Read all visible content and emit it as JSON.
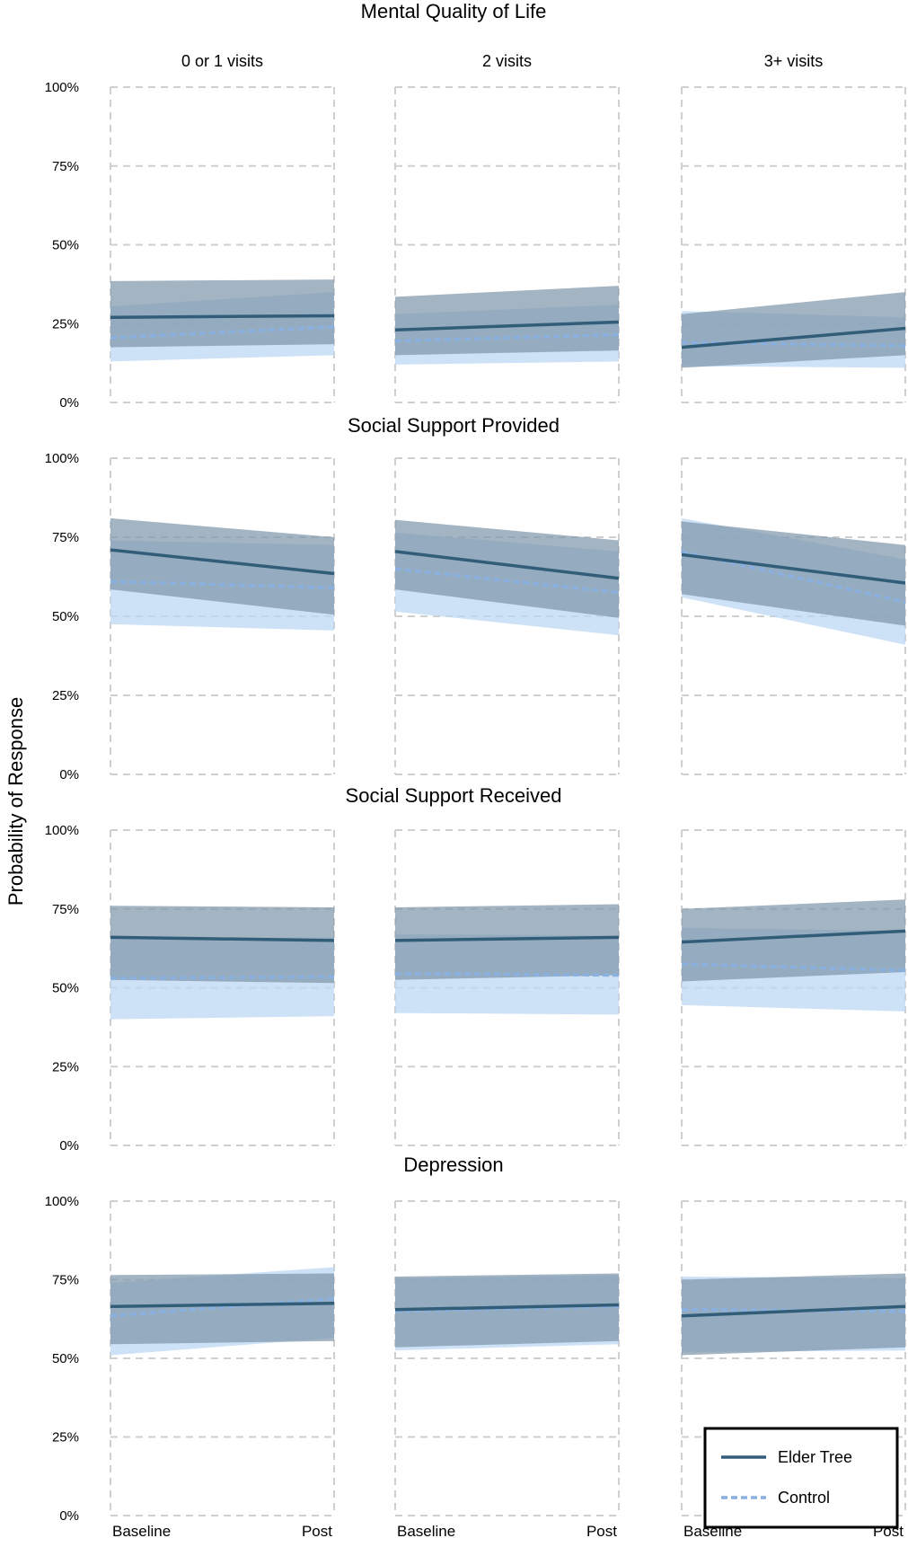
{
  "chart_data": {
    "type": "line",
    "ylabel": "Probability of Response",
    "yticks": [
      "0%",
      "25%",
      "50%",
      "75%",
      "100%"
    ],
    "ylim": [
      0,
      100
    ],
    "columns": [
      "0 or 1 visits",
      "2 visits",
      "3+ visits"
    ],
    "x": [
      "Baseline",
      "Post"
    ],
    "grid": true,
    "legend": {
      "position": "bottom-right",
      "items": [
        {
          "name": "Elder Tree",
          "style": "solid"
        },
        {
          "name": "Control",
          "style": "dashed"
        }
      ]
    },
    "colors": {
      "elder_line": "#325d78",
      "elder_band": "#7f97ab",
      "control_line": "#8ab0e0",
      "control_band": "#bcd7f4",
      "grid": "#cfcfcf"
    },
    "rows": [
      {
        "title": "Mental Quality of Life",
        "panels": [
          {
            "elder": {
              "values": [
                27,
                27.5
              ],
              "lower": [
                17.5,
                18.5
              ],
              "upper": [
                38.5,
                39
              ]
            },
            "control": {
              "values": [
                20.5,
                24
              ],
              "lower": [
                13,
                15
              ],
              "upper": [
                30.5,
                35
              ]
            }
          },
          {
            "elder": {
              "values": [
                23,
                25.5
              ],
              "lower": [
                15,
                16.5
              ],
              "upper": [
                33.5,
                37
              ]
            },
            "control": {
              "values": [
                19.5,
                21.5
              ],
              "lower": [
                12,
                13
              ],
              "upper": [
                28,
                31
              ]
            }
          },
          {
            "elder": {
              "values": [
                17.5,
                23.5
              ],
              "lower": [
                11,
                15
              ],
              "upper": [
                28,
                35
              ]
            },
            "control": {
              "values": [
                19,
                18
              ],
              "lower": [
                11.5,
                11
              ],
              "upper": [
                29,
                27
              ]
            }
          }
        ]
      },
      {
        "title": "Social Support Provided",
        "panels": [
          {
            "elder": {
              "values": [
                71,
                63.5
              ],
              "lower": [
                58.5,
                50.5
              ],
              "upper": [
                81,
                75
              ]
            },
            "control": {
              "values": [
                61,
                59
              ],
              "lower": [
                47.5,
                45.5
              ],
              "upper": [
                74,
                72.5
              ]
            }
          },
          {
            "elder": {
              "values": [
                70.5,
                62
              ],
              "lower": [
                58.5,
                49.5
              ],
              "upper": [
                80.5,
                74
              ]
            },
            "control": {
              "values": [
                65,
                57.5
              ],
              "lower": [
                51.5,
                44
              ],
              "upper": [
                76.5,
                70.5
              ]
            }
          },
          {
            "elder": {
              "values": [
                69.5,
                60.5
              ],
              "lower": [
                57,
                47
              ],
              "upper": [
                80,
                72.5
              ]
            },
            "control": {
              "values": [
                70.5,
                54.5
              ],
              "lower": [
                56,
                41
              ],
              "upper": [
                81,
                68
              ]
            }
          }
        ]
      },
      {
        "title": "Social Support Received",
        "panels": [
          {
            "elder": {
              "values": [
                66,
                65
              ],
              "lower": [
                52.5,
                51.5
              ],
              "upper": [
                76,
                75.5
              ]
            },
            "control": {
              "values": [
                53,
                53.5
              ],
              "lower": [
                40,
                41
              ],
              "upper": [
                65.5,
                66
              ]
            }
          },
          {
            "elder": {
              "values": [
                65,
                66
              ],
              "lower": [
                52.5,
                54
              ],
              "upper": [
                75.5,
                76.5
              ]
            },
            "control": {
              "values": [
                54.5,
                54
              ],
              "lower": [
                42,
                41.5
              ],
              "upper": [
                67,
                66.5
              ]
            }
          },
          {
            "elder": {
              "values": [
                64.5,
                68
              ],
              "lower": [
                52,
                55
              ],
              "upper": [
                75,
                78
              ]
            },
            "control": {
              "values": [
                57.5,
                55.5
              ],
              "lower": [
                44.5,
                42.5
              ],
              "upper": [
                69,
                68
              ]
            }
          }
        ]
      },
      {
        "title": "Depression",
        "panels": [
          {
            "elder": {
              "values": [
                66.5,
                67.5
              ],
              "lower": [
                54.5,
                55.5
              ],
              "upper": [
                76.5,
                77
              ]
            },
            "control": {
              "values": [
                63.5,
                69
              ],
              "lower": [
                51,
                56.5
              ],
              "upper": [
                74,
                79
              ]
            }
          },
          {
            "elder": {
              "values": [
                65.5,
                67
              ],
              "lower": [
                53.5,
                55.5
              ],
              "upper": [
                76,
                77
              ]
            },
            "control": {
              "values": [
                65,
                66.5
              ],
              "lower": [
                52.5,
                54.5
              ],
              "upper": [
                75.5,
                76.5
              ]
            }
          },
          {
            "elder": {
              "values": [
                63.5,
                66.5
              ],
              "lower": [
                51,
                53.5
              ],
              "upper": [
                75,
                77
              ]
            },
            "control": {
              "values": [
                65.5,
                65
              ],
              "lower": [
                52,
                52.5
              ],
              "upper": [
                76,
                75.5
              ]
            }
          }
        ]
      }
    ]
  }
}
